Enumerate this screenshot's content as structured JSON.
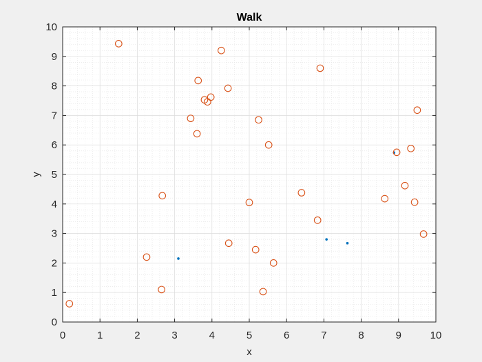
{
  "chart_data": {
    "type": "scatter",
    "title": "Walk",
    "xlabel": "x",
    "ylabel": "y",
    "xlim": [
      0,
      10
    ],
    "ylim": [
      0,
      10
    ],
    "xticks": [
      0,
      1,
      2,
      3,
      4,
      5,
      6,
      7,
      8,
      9,
      10
    ],
    "yticks": [
      0,
      1,
      2,
      3,
      4,
      5,
      6,
      7,
      8,
      9,
      10
    ],
    "grid": "minor",
    "colors": {
      "points": "#0072bd",
      "circles": "#d95319",
      "background": "#f0f0f0",
      "axes": "#ffffff"
    },
    "series": [
      {
        "marker": "dot",
        "color": "#0072bd",
        "x": [
          3.1,
          7.07,
          7.63,
          8.88
        ],
        "y": [
          2.15,
          2.8,
          2.67,
          5.74
        ]
      },
      {
        "marker": "open-circle",
        "color": "#d95319",
        "x": [
          0.18,
          1.5,
          2.25,
          2.65,
          2.67,
          3.43,
          3.6,
          3.63,
          3.8,
          3.88,
          3.97,
          4.25,
          4.43,
          4.45,
          5.0,
          5.17,
          5.25,
          5.37,
          5.52,
          5.65,
          6.4,
          6.83,
          6.9,
          8.63,
          8.95,
          9.17,
          9.33,
          9.43,
          9.5,
          9.67
        ],
        "y": [
          0.62,
          9.43,
          2.2,
          1.1,
          4.28,
          6.9,
          6.38,
          8.18,
          7.53,
          7.46,
          7.62,
          9.2,
          7.92,
          2.67,
          4.05,
          2.45,
          6.85,
          1.03,
          6.0,
          2.0,
          4.38,
          3.45,
          8.6,
          4.18,
          5.75,
          4.62,
          5.88,
          4.06,
          7.18,
          2.98
        ]
      }
    ]
  }
}
